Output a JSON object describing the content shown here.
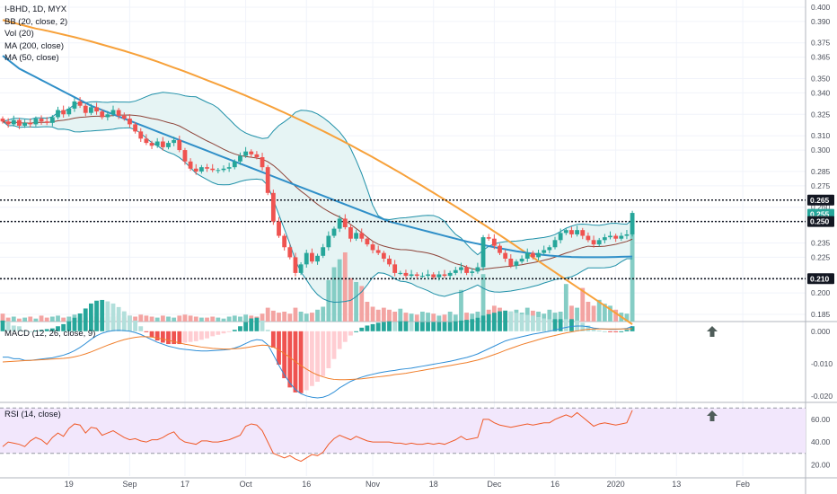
{
  "legend": {
    "symbol": "I-BHD, 1D, MYX",
    "bb": "BB (20, close, 2)",
    "vol": "Vol (20)",
    "ma200": "MA (200, close)",
    "ma50": "MA (50, close)"
  },
  "macd_label": "MACD (12, 26, close, 9)",
  "rsi_label": "RSI (14, close)",
  "colors": {
    "up": "#26a69a",
    "down": "#ef5350",
    "up_vol": "#85cdc5",
    "down_vol": "#f3a4a2",
    "ma200": "#f7a13a",
    "ma50": "#2f8fc8",
    "bb_basis": "#8d4338",
    "bb_band": "#1f90a8",
    "bb_fill": "#e6f4f4",
    "rsi_line": "#f05a28",
    "rsi_band": "#f2e7fc",
    "macd_line": "#2e8ed6",
    "signal_line": "#f07e2a",
    "level_line": "#131722",
    "tag_dark": "#131722",
    "tag_green": "#26a69a"
  },
  "chart_data": [
    {
      "type": "candlestick",
      "title": "I-BHD, 1D, MYX",
      "x_labels": [
        "19",
        "Sep",
        "17",
        "Oct",
        "16",
        "Nov",
        "18",
        "Dec",
        "16",
        "2020",
        "13",
        "Feb"
      ],
      "ylim": [
        0.18,
        0.405
      ],
      "y_ticks": [
        "0.400",
        "0.390",
        "0.375",
        "0.365",
        "0.350",
        "0.340",
        "0.325",
        "0.310",
        "0.300",
        "0.285",
        "0.275",
        "0.260",
        "0.250",
        "0.235",
        "0.225",
        "0.210",
        "0.200",
        "0.185"
      ],
      "horizontal_levels": [
        0.265,
        0.25,
        0.21
      ],
      "price_tags": [
        {
          "label": "0.265",
          "style": "dark"
        },
        {
          "label": "0.255",
          "style": "green"
        },
        {
          "label": "0.250",
          "style": "dark"
        },
        {
          "label": "0.210",
          "style": "dark"
        }
      ],
      "close": [
        0.32,
        0.318,
        0.321,
        0.317,
        0.319,
        0.318,
        0.322,
        0.32,
        0.319,
        0.323,
        0.328,
        0.325,
        0.329,
        0.334,
        0.331,
        0.326,
        0.33,
        0.327,
        0.323,
        0.325,
        0.328,
        0.324,
        0.322,
        0.318,
        0.313,
        0.308,
        0.305,
        0.303,
        0.306,
        0.302,
        0.305,
        0.307,
        0.3,
        0.292,
        0.287,
        0.285,
        0.288,
        0.287,
        0.286,
        0.286,
        0.287,
        0.288,
        0.292,
        0.296,
        0.299,
        0.297,
        0.295,
        0.288,
        0.27,
        0.25,
        0.24,
        0.232,
        0.225,
        0.214,
        0.22,
        0.228,
        0.222,
        0.226,
        0.232,
        0.24,
        0.245,
        0.252,
        0.246,
        0.238,
        0.242,
        0.238,
        0.234,
        0.23,
        0.228,
        0.224,
        0.22,
        0.214,
        0.214,
        0.212,
        0.213,
        0.212,
        0.212,
        0.213,
        0.211,
        0.213,
        0.212,
        0.214,
        0.216,
        0.218,
        0.214,
        0.215,
        0.218,
        0.239,
        0.238,
        0.233,
        0.228,
        0.224,
        0.219,
        0.222,
        0.224,
        0.228,
        0.225,
        0.228,
        0.23,
        0.232,
        0.237,
        0.242,
        0.244,
        0.241,
        0.244,
        0.24,
        0.237,
        0.234,
        0.237,
        0.239,
        0.24,
        0.238,
        0.24,
        0.241,
        0.256
      ],
      "volume": [
        8,
        4,
        5,
        3,
        4,
        5,
        3,
        6,
        4,
        5,
        6,
        4,
        5,
        7,
        5,
        4,
        6,
        5,
        4,
        5,
        5,
        6,
        4,
        6,
        5,
        7,
        6,
        5,
        4,
        6,
        5,
        4,
        6,
        7,
        6,
        5,
        4,
        4,
        5,
        4,
        3,
        5,
        6,
        5,
        7,
        6,
        5,
        8,
        14,
        11,
        9,
        10,
        8,
        14,
        10,
        8,
        9,
        12,
        15,
        42,
        55,
        63,
        70,
        44,
        40,
        36,
        20,
        15,
        12,
        14,
        12,
        10,
        13,
        9,
        8,
        7,
        10,
        9,
        8,
        6,
        7,
        10,
        7,
        32,
        9,
        8,
        10,
        48,
        12,
        16,
        14,
        11,
        10,
        12,
        9,
        14,
        11,
        10,
        8,
        12,
        9,
        10,
        38,
        16,
        14,
        34,
        20,
        16,
        22,
        18,
        16,
        12,
        9,
        8,
        100
      ],
      "series": [
        {
          "name": "MA (200, close)",
          "start": 0,
          "values": [
            0.391,
            0.39,
            0.389,
            0.388,
            0.387,
            0.386,
            0.385,
            0.3843,
            0.3835,
            0.3826,
            0.3817,
            0.3808,
            0.3799,
            0.379,
            0.378,
            0.377,
            0.376,
            0.3749,
            0.3738,
            0.3727,
            0.3716,
            0.3705,
            0.3694,
            0.3682,
            0.367,
            0.3658,
            0.3645,
            0.3632,
            0.3619,
            0.3605,
            0.3591,
            0.3577,
            0.3563,
            0.3549,
            0.3534,
            0.3519,
            0.3504,
            0.3489,
            0.3474,
            0.3459,
            0.3444,
            0.3428,
            0.3413,
            0.3397,
            0.3381,
            0.3364,
            0.3348,
            0.3331,
            0.3314,
            0.3297,
            0.3279,
            0.3262,
            0.3244,
            0.3226,
            0.3208,
            0.319,
            0.3171,
            0.3152,
            0.3133,
            0.3114,
            0.3094,
            0.3074,
            0.3054,
            0.3034,
            0.3013,
            0.2992,
            0.2971,
            0.295,
            0.2928,
            0.2906,
            0.2884,
            0.2862,
            0.284,
            0.2817,
            0.2794,
            0.2771,
            0.2748,
            0.2724,
            0.2701,
            0.2677,
            0.2653,
            0.2629,
            0.2605,
            0.258,
            0.2556,
            0.2531,
            0.2506,
            0.2481,
            0.2456,
            0.243,
            0.2405,
            0.2379,
            0.2353,
            0.2327,
            0.2301,
            0.2275,
            0.2249,
            0.2223,
            0.2197,
            0.2171,
            0.2145,
            0.2119,
            0.2093,
            0.2067,
            0.2041,
            0.2015,
            0.1989,
            0.1963,
            0.1937,
            0.1911,
            0.1885,
            0.1859,
            0.1833,
            0.1807,
            0.1781
          ]
        },
        {
          "name": "MA (50, close)",
          "start": 0,
          "values": [
            0.366,
            0.363,
            0.36,
            0.357,
            0.355,
            0.353,
            0.351,
            0.349,
            0.347,
            0.345,
            0.343,
            0.341,
            0.339,
            0.337,
            0.335,
            0.333,
            0.331,
            0.3295,
            0.328,
            0.3265,
            0.325,
            0.3235,
            0.322,
            0.3205,
            0.319,
            0.3175,
            0.316,
            0.3145,
            0.313,
            0.3115,
            0.31,
            0.3085,
            0.307,
            0.3055,
            0.304,
            0.3025,
            0.301,
            0.2995,
            0.298,
            0.2965,
            0.295,
            0.2935,
            0.292,
            0.2905,
            0.289,
            0.2875,
            0.286,
            0.2845,
            0.283,
            0.2815,
            0.28,
            0.2785,
            0.277,
            0.2755,
            0.274,
            0.2725,
            0.271,
            0.2695,
            0.268,
            0.2665,
            0.265,
            0.2635,
            0.262,
            0.2605,
            0.259,
            0.2575,
            0.256,
            0.2545,
            0.253,
            0.2515,
            0.25,
            0.249,
            0.248,
            0.247,
            0.246,
            0.245,
            0.244,
            0.243,
            0.242,
            0.241,
            0.24,
            0.239,
            0.238,
            0.237,
            0.236,
            0.2352,
            0.2344,
            0.2336,
            0.2328,
            0.232,
            0.2313,
            0.2306,
            0.2299,
            0.2292,
            0.2286,
            0.228,
            0.2275,
            0.227,
            0.2266,
            0.2262,
            0.2259,
            0.2256,
            0.2254,
            0.2252,
            0.2251,
            0.225,
            0.225,
            0.225,
            0.225,
            0.225,
            0.2251,
            0.2252,
            0.2253,
            0.2254,
            0.2255
          ]
        }
      ]
    },
    {
      "type": "macd",
      "title": "MACD (12, 26, close, 9)",
      "ylim": [
        -0.022,
        0.003
      ],
      "y_ticks": [
        "0.000",
        "-0.010",
        "-0.020"
      ],
      "series": [
        {
          "name": "MACD",
          "start": 0,
          "values": [
            -0.008,
            -0.008,
            -0.0085,
            -0.0085,
            -0.009,
            -0.009,
            -0.0088,
            -0.0086,
            -0.0084,
            -0.0082,
            -0.0078,
            -0.0074,
            -0.0068,
            -0.006,
            -0.005,
            -0.0038,
            -0.0025,
            -0.0014,
            -0.0006,
            -0.0001,
            0.0002,
            0.0003,
            0.0002,
            0.0,
            -0.0004,
            -0.001,
            -0.0018,
            -0.0026,
            -0.0034,
            -0.004,
            -0.0046,
            -0.005,
            -0.0054,
            -0.0056,
            -0.0058,
            -0.006,
            -0.0061,
            -0.0061,
            -0.006,
            -0.0059,
            -0.0058,
            -0.0056,
            -0.0052,
            -0.0046,
            -0.0038,
            -0.003,
            -0.0026,
            -0.0028,
            -0.0042,
            -0.0072,
            -0.0105,
            -0.0135,
            -0.016,
            -0.018,
            -0.0193,
            -0.02,
            -0.0204,
            -0.0206,
            -0.0204,
            -0.0198,
            -0.0188,
            -0.0175,
            -0.0165,
            -0.0155,
            -0.0148,
            -0.0142,
            -0.0137,
            -0.0133,
            -0.0129,
            -0.0126,
            -0.0123,
            -0.0121,
            -0.0118,
            -0.0116,
            -0.0114,
            -0.0111,
            -0.0108,
            -0.0105,
            -0.0102,
            -0.0099,
            -0.0096,
            -0.0093,
            -0.0089,
            -0.0085,
            -0.0081,
            -0.0076,
            -0.007,
            -0.0062,
            -0.0054,
            -0.0046,
            -0.0038,
            -0.003,
            -0.0025,
            -0.0021,
            -0.0017,
            -0.0013,
            -0.0009,
            -0.0006,
            -0.0003,
            0.0,
            0.0004,
            0.0008,
            0.0012,
            0.0015,
            0.0016,
            0.0016,
            0.0014,
            0.001,
            0.0008,
            0.0007,
            0.0006,
            0.0006,
            0.0007,
            0.0009,
            0.0015
          ]
        },
        {
          "name": "Signal",
          "start": 0,
          "values": [
            -0.0095,
            -0.0094,
            -0.0093,
            -0.0092,
            -0.0091,
            -0.009,
            -0.0089,
            -0.0088,
            -0.0087,
            -0.0086,
            -0.0085,
            -0.0084,
            -0.0082,
            -0.0079,
            -0.0075,
            -0.007,
            -0.0064,
            -0.0057,
            -0.005,
            -0.0043,
            -0.0037,
            -0.0031,
            -0.0026,
            -0.0022,
            -0.0019,
            -0.0017,
            -0.0017,
            -0.0018,
            -0.0021,
            -0.0024,
            -0.0028,
            -0.0032,
            -0.0036,
            -0.004,
            -0.0043,
            -0.0046,
            -0.0049,
            -0.0051,
            -0.0053,
            -0.0054,
            -0.0055,
            -0.0055,
            -0.0054,
            -0.0053,
            -0.0051,
            -0.0048,
            -0.0045,
            -0.0043,
            -0.0044,
            -0.0049,
            -0.0058,
            -0.0069,
            -0.0081,
            -0.0094,
            -0.0106,
            -0.0117,
            -0.0127,
            -0.0135,
            -0.0141,
            -0.0146,
            -0.0149,
            -0.015,
            -0.015,
            -0.0149,
            -0.0148,
            -0.0147,
            -0.0145,
            -0.0143,
            -0.0141,
            -0.0139,
            -0.0137,
            -0.0134,
            -0.0132,
            -0.013,
            -0.0127,
            -0.0124,
            -0.0121,
            -0.0118,
            -0.0115,
            -0.0112,
            -0.0109,
            -0.0106,
            -0.0103,
            -0.01,
            -0.0097,
            -0.0093,
            -0.0089,
            -0.0084,
            -0.0078,
            -0.0072,
            -0.0066,
            -0.0059,
            -0.0053,
            -0.0047,
            -0.0041,
            -0.0036,
            -0.0031,
            -0.0026,
            -0.0021,
            -0.0017,
            -0.0013,
            -0.0009,
            -0.0005,
            -0.0002,
            0.0001,
            0.0004,
            0.0006,
            0.0007,
            0.0007,
            0.0007,
            0.0007,
            0.0007,
            0.0007,
            0.0007,
            0.0008
          ]
        }
      ]
    },
    {
      "type": "line",
      "title": "RSI (14, close)",
      "ylim": [
        10,
        75
      ],
      "y_ticks": [
        "60.00",
        "40.00",
        "20.00"
      ],
      "bands": [
        30,
        70
      ],
      "series": [
        {
          "name": "RSI",
          "start": 0,
          "values": [
            36,
            40,
            39,
            38,
            36,
            41,
            44,
            42,
            38,
            44,
            48,
            45,
            52,
            56,
            55,
            48,
            53,
            52,
            46,
            48,
            50,
            47,
            44,
            42,
            43,
            41,
            40,
            42,
            42,
            44,
            47,
            49,
            43,
            40,
            39,
            38,
            41,
            41,
            40,
            40,
            41,
            42,
            44,
            46,
            54,
            56,
            55,
            50,
            40,
            30,
            28,
            26,
            28,
            25,
            23,
            26,
            29,
            28,
            31,
            38,
            43,
            46,
            44,
            42,
            45,
            43,
            41,
            40,
            40,
            40,
            40,
            39,
            39,
            38,
            39,
            38,
            38,
            39,
            38,
            39,
            38,
            40,
            42,
            45,
            42,
            43,
            44,
            60,
            60,
            57,
            55,
            54,
            53,
            54,
            55,
            56,
            55,
            56,
            57,
            57,
            60,
            62,
            64,
            62,
            66,
            62,
            58,
            54,
            56,
            57,
            56,
            55,
            56,
            57,
            68
          ]
        }
      ]
    }
  ]
}
